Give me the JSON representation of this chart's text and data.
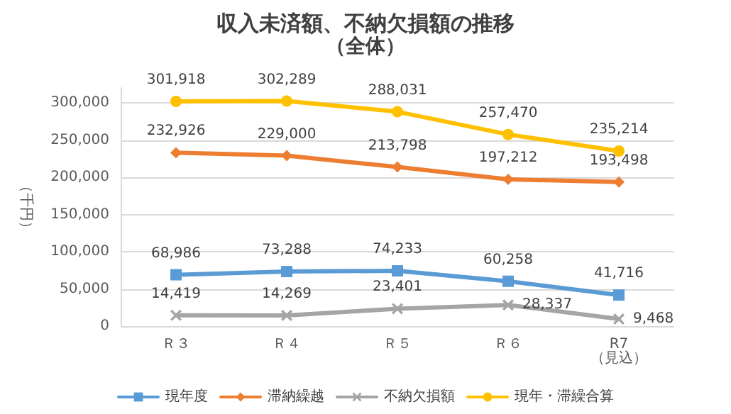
{
  "chart_data": {
    "type": "line",
    "title": "収入未済額、不納欠損額の推移",
    "subtitle": "（全体）",
    "ylabel": "（千円）",
    "categories": [
      "Ｒ３",
      "Ｒ４",
      "Ｒ５",
      "Ｒ６",
      "R7\n（見込）"
    ],
    "series": [
      {
        "name": "現年度",
        "color": "#5b9bd5",
        "marker": "square",
        "values": [
          68986,
          73288,
          74233,
          60258,
          41716
        ],
        "value_labels": [
          "68,986",
          "73,288",
          "74,233",
          "60,258",
          "41,716"
        ]
      },
      {
        "name": "滞納繰越",
        "color": "#ed7d31",
        "marker": "diamond",
        "values": [
          232926,
          229000,
          213798,
          197212,
          193498
        ],
        "value_labels": [
          "232,926",
          "229,000",
          "213,798",
          "197,212",
          "193,498"
        ]
      },
      {
        "name": "不納欠損額",
        "color": "#a5a5a5",
        "marker": "cross",
        "values": [
          14419,
          14269,
          23401,
          28337,
          9468
        ],
        "value_labels": [
          "14,419",
          "14,269",
          "23,401",
          "28,337",
          "9,468"
        ]
      },
      {
        "name": "現年・滞繰合算",
        "color": "#ffc000",
        "marker": "circle",
        "values": [
          301918,
          302289,
          288031,
          257470,
          235214
        ],
        "value_labels": [
          "301,918",
          "302,289",
          "288,031",
          "257,470",
          "235,214"
        ]
      }
    ],
    "ylim": [
      0,
      320000
    ],
    "yticks": [
      {
        "value": 0,
        "label": "0"
      },
      {
        "value": 50000,
        "label": "50,000"
      },
      {
        "value": 100000,
        "label": "100,000"
      },
      {
        "value": 150000,
        "label": "150,000"
      },
      {
        "value": 200000,
        "label": "200,000"
      },
      {
        "value": 250000,
        "label": "250,000"
      },
      {
        "value": 300000,
        "label": "300,000"
      }
    ],
    "grid": "y",
    "legend": "bottom",
    "line_style": "solid"
  }
}
